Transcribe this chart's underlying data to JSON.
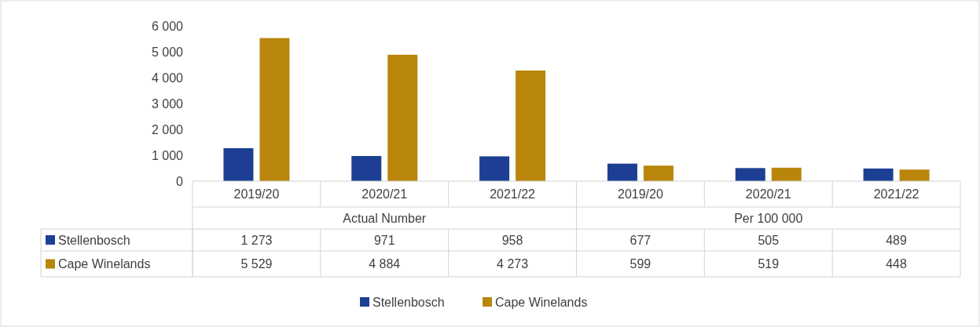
{
  "chart_data": {
    "type": "bar",
    "categories": [
      "2019/20",
      "2020/21",
      "2021/22",
      "2019/20",
      "2020/21",
      "2021/22"
    ],
    "annotations": [
      "Actual Number",
      "Per 100 000"
    ],
    "series": [
      {
        "name": "Stellenbosch",
        "color": "#1c3f94",
        "values": [
          1273,
          971,
          958,
          677,
          505,
          489
        ],
        "value_labels": [
          "1 273",
          "971",
          "958",
          "677",
          "505",
          "489"
        ]
      },
      {
        "name": "Cape Winelands",
        "color": "#b8860b",
        "values": [
          5529,
          4884,
          4273,
          599,
          519,
          448
        ],
        "value_labels": [
          "5 529",
          "4 884",
          "4 273",
          "599",
          "519",
          "448"
        ]
      }
    ],
    "ylim": [
      0,
      6000
    ],
    "yticks": [
      {
        "value": 0,
        "label": "0"
      },
      {
        "value": 1000,
        "label": "1 000"
      },
      {
        "value": 2000,
        "label": "2 000"
      },
      {
        "value": 3000,
        "label": "3 000"
      },
      {
        "value": 4000,
        "label": "4 000"
      },
      {
        "value": 5000,
        "label": "5 000"
      },
      {
        "value": 6000,
        "label": "6 000"
      }
    ],
    "legend": "bottom"
  }
}
